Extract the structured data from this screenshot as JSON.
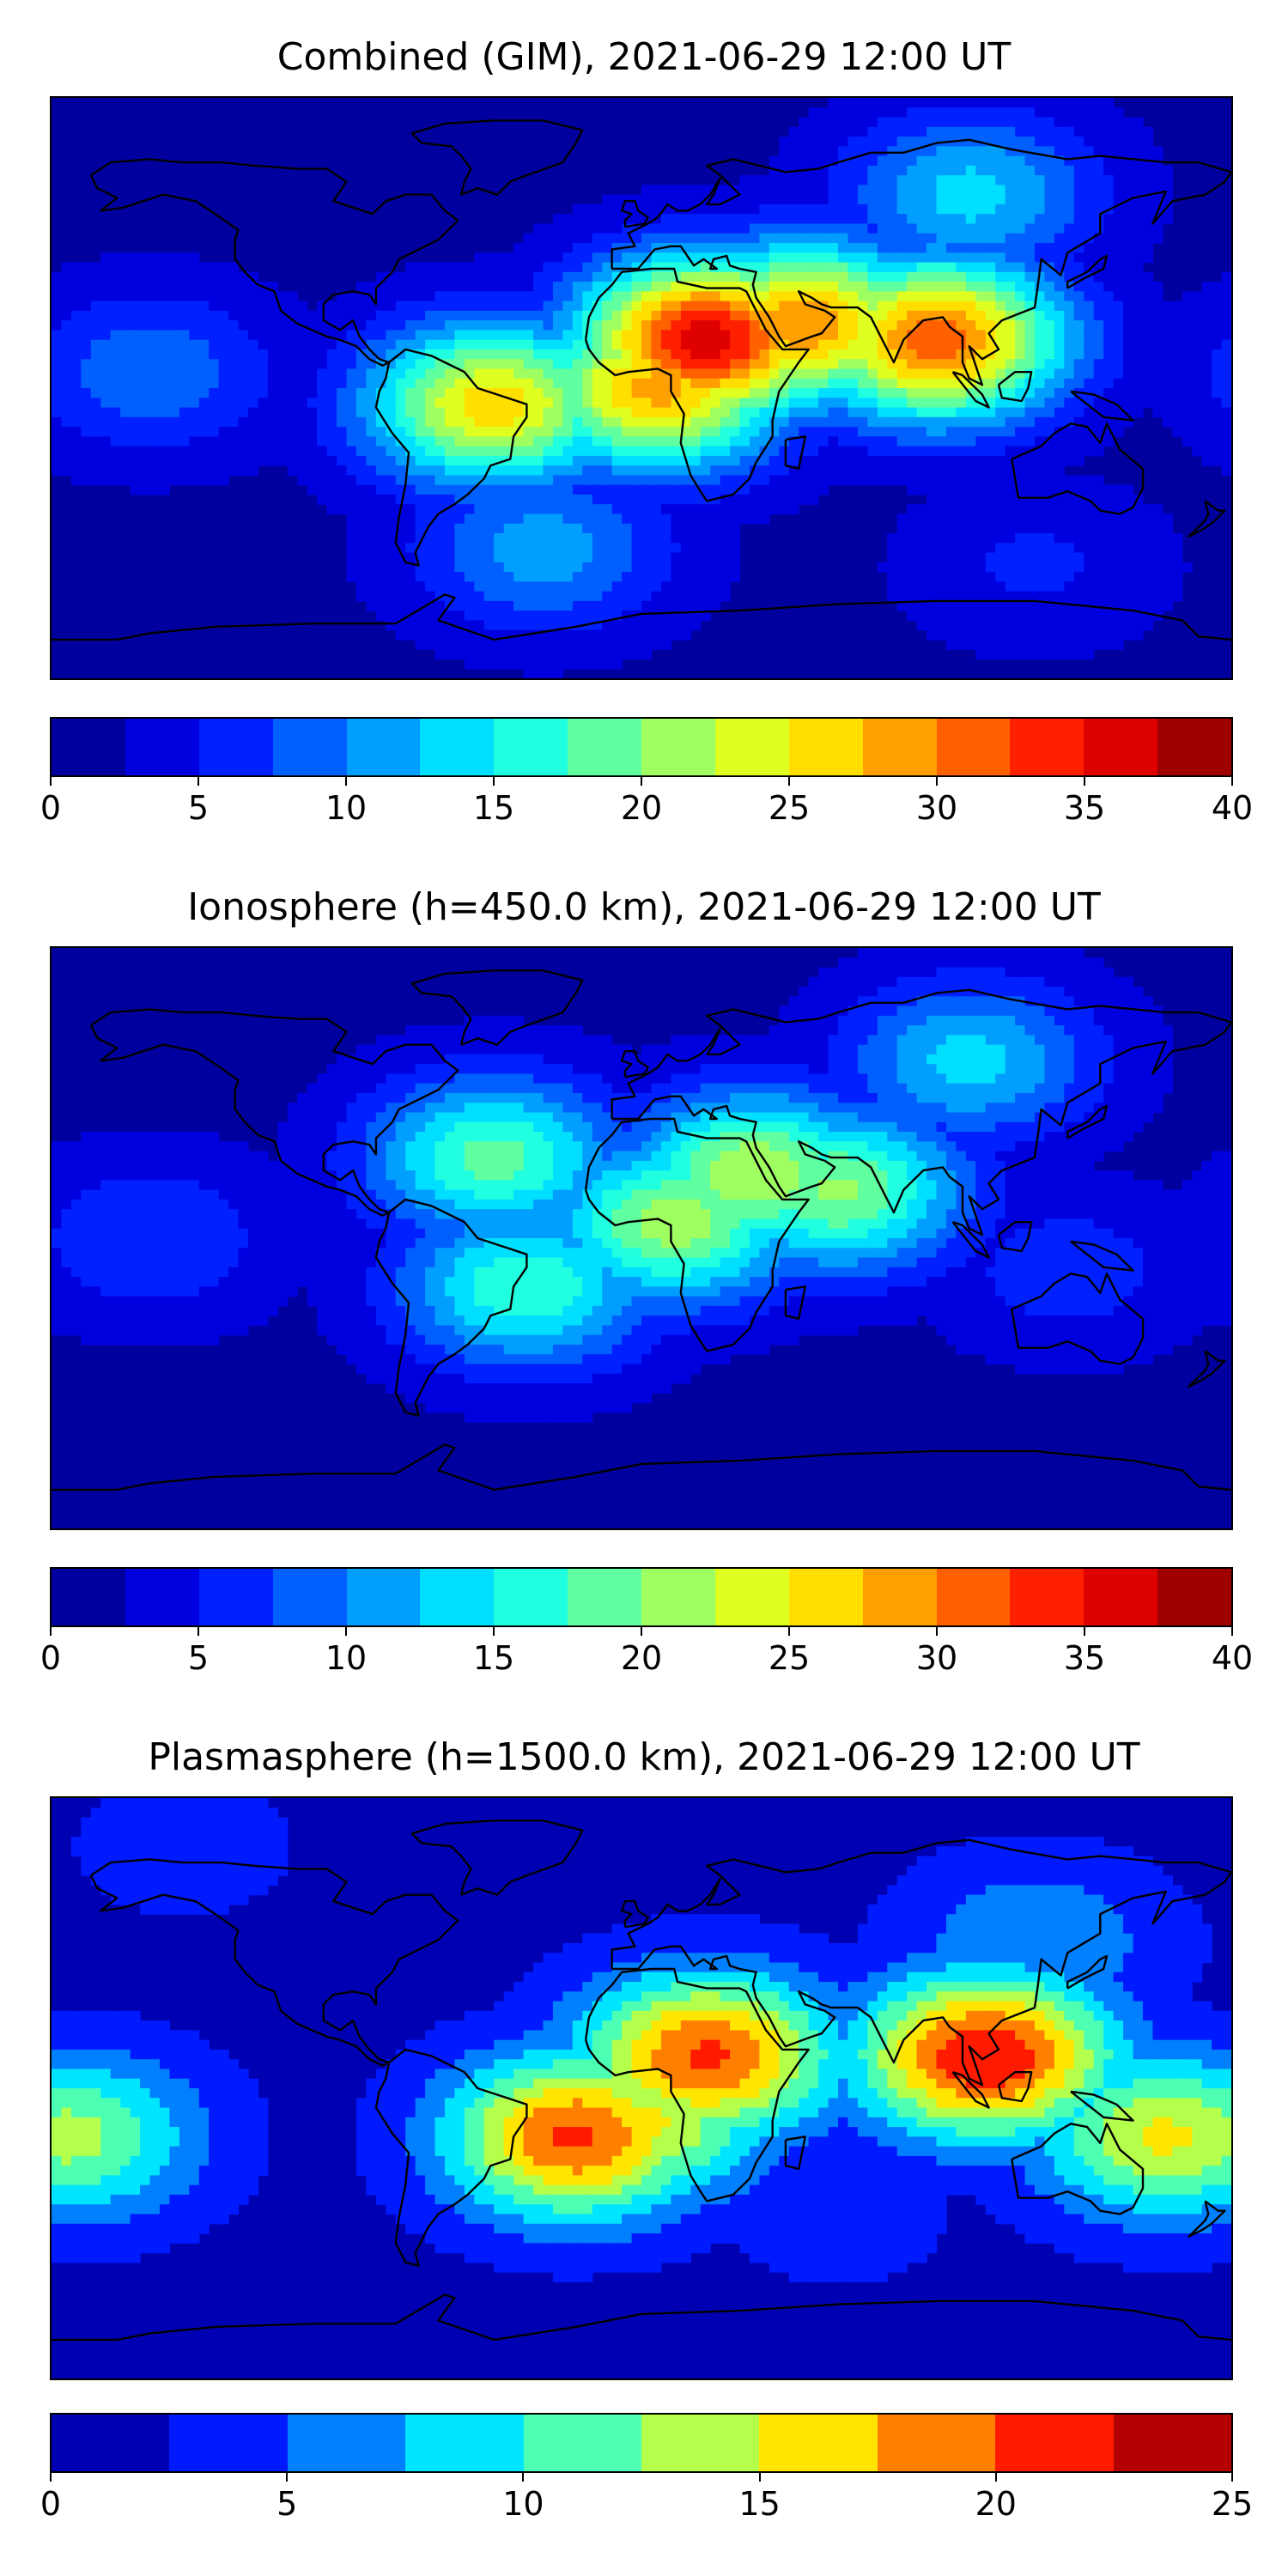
{
  "chart_data": [
    {
      "type": "heatmap",
      "title": "Combined (GIM), 2021-06-29 12:00 UT",
      "map": "world coastlines, equirectangular, longitude -180 to 180, latitude -90 to 90",
      "colormap": "jet",
      "colorbar": {
        "range": [
          0,
          40
        ],
        "levels": [
          0,
          2.5,
          5,
          7.5,
          10,
          12.5,
          15,
          17.5,
          20,
          22.5,
          25,
          27.5,
          30,
          32.5,
          35,
          37.5,
          40
        ],
        "ticks": [
          0,
          5,
          10,
          15,
          20,
          25,
          30,
          35,
          40
        ],
        "tick_labels": [
          "0",
          "5",
          "10",
          "15",
          "20",
          "25",
          "30",
          "35",
          "40"
        ]
      },
      "features": [
        {
          "lon": 20,
          "lat": 15,
          "value": 35
        },
        {
          "lon": 50,
          "lat": 20,
          "value": 28
        },
        {
          "lon": 90,
          "lat": 15,
          "value": 30
        },
        {
          "lon": -45,
          "lat": -5,
          "value": 25
        },
        {
          "lon": 5,
          "lat": 0,
          "value": 27
        },
        {
          "lon": -150,
          "lat": 5,
          "value": 8
        },
        {
          "lon": -30,
          "lat": -50,
          "value": 10
        },
        {
          "lon": 120,
          "lat": -55,
          "value": 4
        },
        {
          "lon": 100,
          "lat": 60,
          "value": 12
        }
      ]
    },
    {
      "type": "heatmap",
      "title": "Ionosphere  (h=450.0 km), 2021-06-29 12:00 UT",
      "map": "world coastlines, equirectangular, longitude -180 to 180, latitude -90 to 90",
      "colormap": "jet",
      "colorbar": {
        "range": [
          0,
          40
        ],
        "levels": [
          0,
          2.5,
          5,
          7.5,
          10,
          12.5,
          15,
          17.5,
          20,
          22.5,
          25,
          27.5,
          30,
          32.5,
          35,
          37.5,
          40
        ],
        "ticks": [
          0,
          5,
          10,
          15,
          20,
          25,
          30,
          35,
          40
        ],
        "tick_labels": [
          "0",
          "5",
          "10",
          "15",
          "20",
          "25",
          "30",
          "35",
          "40"
        ]
      },
      "features": [
        {
          "lon": 35,
          "lat": 20,
          "value": 21
        },
        {
          "lon": 60,
          "lat": 15,
          "value": 19
        },
        {
          "lon": 10,
          "lat": 5,
          "value": 20
        },
        {
          "lon": -45,
          "lat": 25,
          "value": 17
        },
        {
          "lon": -35,
          "lat": -15,
          "value": 16
        },
        {
          "lon": -150,
          "lat": 0,
          "value": 6
        },
        {
          "lon": 130,
          "lat": -10,
          "value": 5
        },
        {
          "lon": 100,
          "lat": 55,
          "value": 12
        }
      ]
    },
    {
      "type": "heatmap",
      "title": "Plasmasphere (h=1500.0 km), 2021-06-29 12:00 UT",
      "map": "world coastlines, equirectangular, longitude -180 to 180, latitude -90 to 90",
      "colormap": "jet",
      "colorbar": {
        "range": [
          0,
          25
        ],
        "levels": [
          0,
          2.5,
          5,
          7.5,
          10,
          12.5,
          15,
          17.5,
          20,
          22.5,
          25
        ],
        "ticks": [
          0,
          5,
          10,
          15,
          20,
          25
        ],
        "tick_labels": [
          "0",
          "5",
          "10",
          "15",
          "20",
          "25"
        ]
      },
      "features": [
        {
          "lon": 20,
          "lat": 10,
          "value": 19
        },
        {
          "lon": 105,
          "lat": 10,
          "value": 21
        },
        {
          "lon": -20,
          "lat": -15,
          "value": 19
        },
        {
          "lon": 0,
          "lat": -10,
          "value": 14
        },
        {
          "lon": -175,
          "lat": -15,
          "value": 12
        },
        {
          "lon": 160,
          "lat": -15,
          "value": 14
        },
        {
          "lon": 60,
          "lat": -40,
          "value": 2
        },
        {
          "lon": -140,
          "lat": 75,
          "value": 2
        },
        {
          "lon": 120,
          "lat": 45,
          "value": 6
        }
      ]
    }
  ]
}
